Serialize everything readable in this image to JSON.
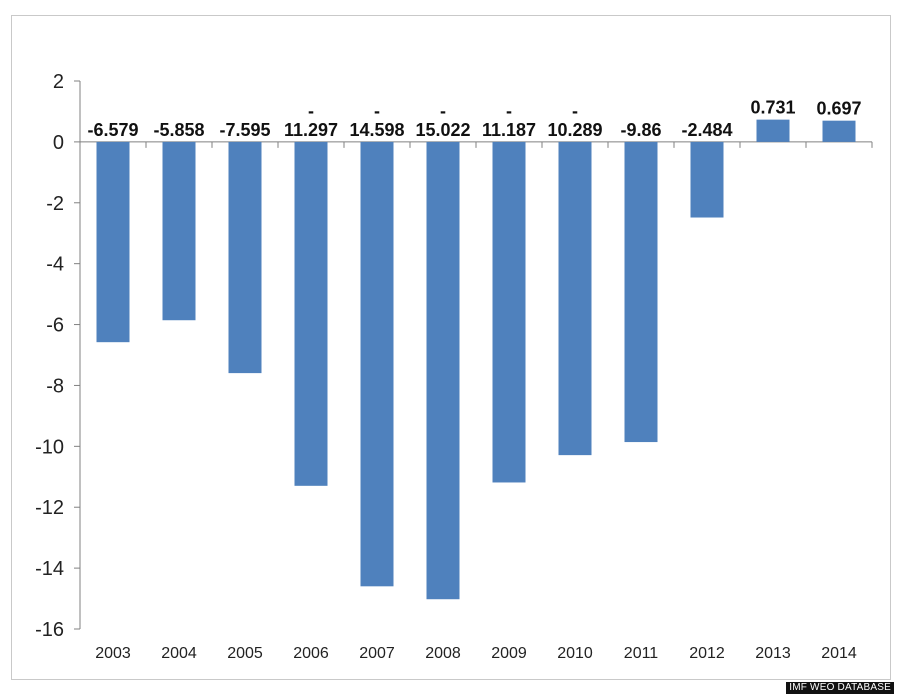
{
  "chart_data": {
    "type": "bar",
    "categories": [
      "2003",
      "2004",
      "2005",
      "2006",
      "2007",
      "2008",
      "2009",
      "2010",
      "2011",
      "2012",
      "2013",
      "2014"
    ],
    "values": [
      -6.579,
      -5.858,
      -7.595,
      -11.297,
      -14.598,
      -15.022,
      -11.187,
      -10.289,
      -9.86,
      -2.484,
      0.731,
      0.697
    ],
    "data_labels": [
      "-6.579",
      "-5.858",
      "-7.595",
      "11.297",
      "14.598",
      "15.022",
      "11.187",
      "10.289",
      "-9.86",
      "-2.484",
      "0.731",
      "0.697"
    ],
    "label_dash": [
      false,
      false,
      false,
      true,
      true,
      true,
      true,
      true,
      false,
      false,
      false,
      false
    ],
    "yticks": [
      "2",
      "0",
      "-2",
      "-4",
      "-6",
      "-8",
      "-10",
      "-12",
      "-14",
      "-16"
    ],
    "ylim": [
      -16,
      2
    ],
    "bar_color": "#4f81bd",
    "grid": false,
    "title": "",
    "xlabel": "",
    "ylabel": ""
  },
  "source_label": "IMF WEO DATABASE"
}
